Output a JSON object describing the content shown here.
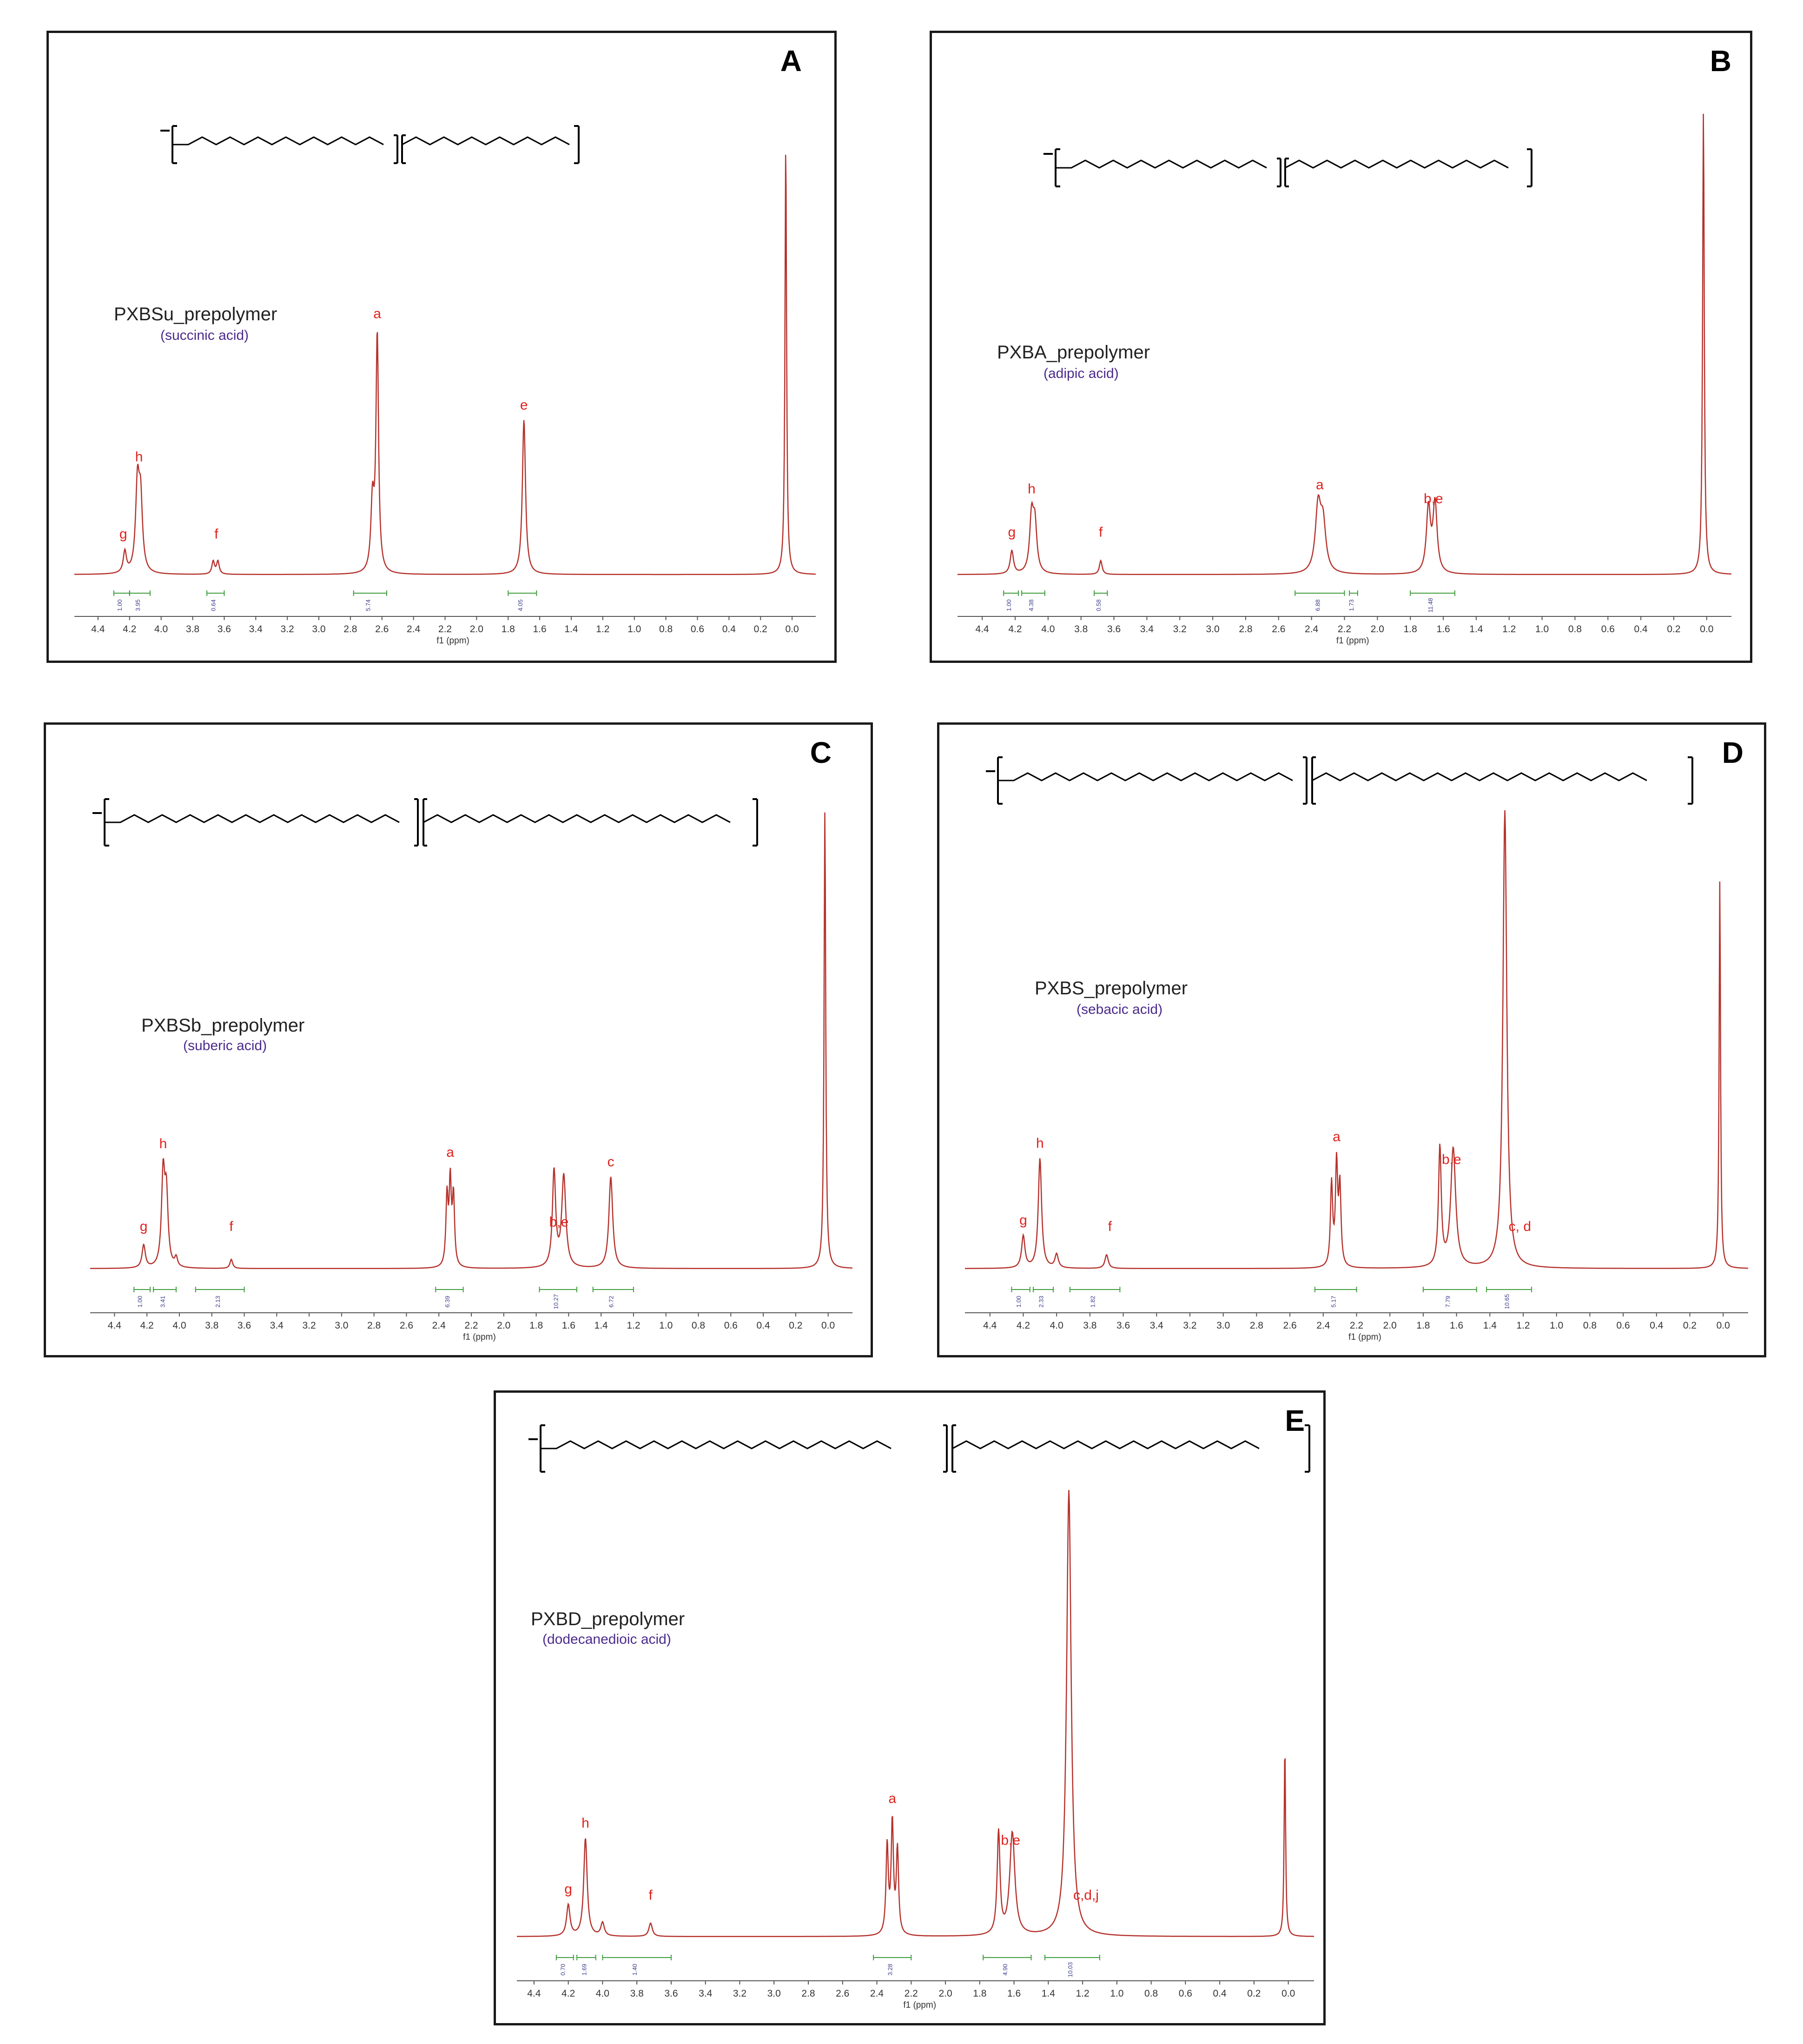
{
  "axis_label": "f1 (ppm)",
  "chart_data": [
    {
      "type": "line",
      "panel": "A",
      "name": "PXBSu_prepolymer",
      "acid": "(succinic acid)",
      "xlim": [
        4.55,
        -0.15
      ],
      "x_reversed": true,
      "ticks": [
        4.4,
        4.2,
        4.0,
        3.8,
        3.6,
        3.4,
        3.2,
        3.0,
        2.8,
        2.6,
        2.4,
        2.2,
        2.0,
        1.8,
        1.6,
        1.4,
        1.2,
        1.0,
        0.8,
        0.6,
        0.4,
        0.2,
        0.0
      ],
      "peaks": [
        {
          "ppm": 4.23,
          "height": 0.05,
          "width": 0.012
        },
        {
          "ppm": 4.15,
          "height": 0.2,
          "width": 0.014
        },
        {
          "ppm": 4.13,
          "height": 0.16,
          "width": 0.014
        },
        {
          "ppm": 3.67,
          "height": 0.03,
          "width": 0.01
        },
        {
          "ppm": 3.64,
          "height": 0.03,
          "width": 0.01
        },
        {
          "ppm": 2.66,
          "height": 0.16,
          "width": 0.012
        },
        {
          "ppm": 2.63,
          "height": 0.55,
          "width": 0.01
        },
        {
          "ppm": 1.7,
          "height": 0.36,
          "width": 0.012
        },
        {
          "ppm": 0.04,
          "height": 1.0,
          "width": 0.006
        }
      ],
      "peak_labels": [
        {
          "ppm": 4.24,
          "label": "g"
        },
        {
          "ppm": 4.14,
          "label": "h"
        },
        {
          "ppm": 3.65,
          "label": "f"
        },
        {
          "ppm": 2.63,
          "label": "a"
        },
        {
          "ppm": 1.7,
          "label": "e"
        }
      ],
      "integrals": [
        {
          "from": 4.3,
          "to": 4.2,
          "value": "1.00"
        },
        {
          "from": 4.2,
          "to": 4.07,
          "value": "3.95"
        },
        {
          "from": 3.71,
          "to": 3.6,
          "value": "0.64"
        },
        {
          "from": 2.78,
          "to": 2.57,
          "value": "5.74"
        },
        {
          "from": 1.8,
          "to": 1.62,
          "value": "4.05"
        }
      ]
    },
    {
      "type": "line",
      "panel": "B",
      "name": "PXBA_prepolymer",
      "acid": "(adipic acid)",
      "xlim": [
        4.55,
        -0.15
      ],
      "x_reversed": true,
      "ticks": [
        4.4,
        4.2,
        4.0,
        3.8,
        3.6,
        3.4,
        3.2,
        3.0,
        2.8,
        2.6,
        2.4,
        2.2,
        2.0,
        1.8,
        1.6,
        1.4,
        1.2,
        1.0,
        0.8,
        0.6,
        0.4,
        0.2,
        0.0
      ],
      "peaks": [
        {
          "ppm": 4.22,
          "height": 0.05,
          "width": 0.012
        },
        {
          "ppm": 4.1,
          "height": 0.12,
          "width": 0.014
        },
        {
          "ppm": 4.08,
          "height": 0.1,
          "width": 0.014
        },
        {
          "ppm": 3.68,
          "height": 0.03,
          "width": 0.01
        },
        {
          "ppm": 2.36,
          "height": 0.14,
          "width": 0.02
        },
        {
          "ppm": 2.33,
          "height": 0.1,
          "width": 0.02
        },
        {
          "ppm": 1.69,
          "height": 0.14,
          "width": 0.015
        },
        {
          "ppm": 1.65,
          "height": 0.15,
          "width": 0.015
        },
        {
          "ppm": 0.02,
          "height": 1.0,
          "width": 0.006
        }
      ],
      "peak_labels": [
        {
          "ppm": 4.22,
          "label": "g"
        },
        {
          "ppm": 4.1,
          "label": "h"
        },
        {
          "ppm": 3.68,
          "label": "f"
        },
        {
          "ppm": 2.35,
          "label": "a"
        },
        {
          "ppm": 1.66,
          "label": "b,e"
        }
      ],
      "integrals": [
        {
          "from": 4.27,
          "to": 4.18,
          "value": "1.00"
        },
        {
          "from": 4.16,
          "to": 4.02,
          "value": "4.38"
        },
        {
          "from": 3.72,
          "to": 3.64,
          "value": "0.58"
        },
        {
          "from": 2.5,
          "to": 2.2,
          "value": "6.88"
        },
        {
          "from": 2.17,
          "to": 2.12,
          "value": "1.73"
        },
        {
          "from": 1.8,
          "to": 1.53,
          "value": "11.48"
        }
      ]
    },
    {
      "type": "line",
      "panel": "C",
      "name": "PXBSb_prepolymer",
      "acid": "(suberic acid)",
      "xlim": [
        4.55,
        -0.15
      ],
      "x_reversed": true,
      "ticks": [
        4.4,
        4.2,
        4.0,
        3.8,
        3.6,
        3.4,
        3.2,
        3.0,
        2.8,
        2.6,
        2.4,
        2.2,
        2.0,
        1.8,
        1.6,
        1.4,
        1.2,
        1.0,
        0.8,
        0.6,
        0.4,
        0.2,
        0.0
      ],
      "peaks": [
        {
          "ppm": 4.22,
          "height": 0.05,
          "width": 0.012
        },
        {
          "ppm": 4.1,
          "height": 0.2,
          "width": 0.012
        },
        {
          "ppm": 4.08,
          "height": 0.15,
          "width": 0.012
        },
        {
          "ppm": 4.02,
          "height": 0.02,
          "width": 0.01
        },
        {
          "ppm": 3.68,
          "height": 0.02,
          "width": 0.01
        },
        {
          "ppm": 2.35,
          "height": 0.15,
          "width": 0.008
        },
        {
          "ppm": 2.33,
          "height": 0.18,
          "width": 0.008
        },
        {
          "ppm": 2.31,
          "height": 0.15,
          "width": 0.008
        },
        {
          "ppm": 1.69,
          "height": 0.21,
          "width": 0.012
        },
        {
          "ppm": 1.63,
          "height": 0.2,
          "width": 0.015
        },
        {
          "ppm": 1.34,
          "height": 0.2,
          "width": 0.014
        },
        {
          "ppm": 0.02,
          "height": 1.0,
          "width": 0.006
        }
      ],
      "peak_labels": [
        {
          "ppm": 4.22,
          "label": "g"
        },
        {
          "ppm": 4.1,
          "label": "h"
        },
        {
          "ppm": 3.68,
          "label": "f"
        },
        {
          "ppm": 2.33,
          "label": "a"
        },
        {
          "ppm": 1.66,
          "label": "b,e"
        },
        {
          "ppm": 1.34,
          "label": "c"
        }
      ],
      "integrals": [
        {
          "from": 4.28,
          "to": 4.18,
          "value": "1.00"
        },
        {
          "from": 4.16,
          "to": 4.02,
          "value": "3.41"
        },
        {
          "from": 3.9,
          "to": 3.6,
          "value": "2.13"
        },
        {
          "from": 2.42,
          "to": 2.25,
          "value": "6.39"
        },
        {
          "from": 1.78,
          "to": 1.55,
          "value": "10.27"
        },
        {
          "from": 1.45,
          "to": 1.2,
          "value": "6.72"
        }
      ]
    },
    {
      "type": "line",
      "panel": "D",
      "name": "PXBS_prepolymer",
      "acid": "(sebacic acid)",
      "xlim": [
        4.55,
        -0.15
      ],
      "x_reversed": true,
      "ticks": [
        4.4,
        4.2,
        4.0,
        3.8,
        3.6,
        3.4,
        3.2,
        3.0,
        2.8,
        2.6,
        2.4,
        2.2,
        2.0,
        1.8,
        1.6,
        1.4,
        1.2,
        1.0,
        0.8,
        0.6,
        0.4,
        0.2,
        0.0
      ],
      "peaks": [
        {
          "ppm": 4.2,
          "height": 0.07,
          "width": 0.012
        },
        {
          "ppm": 4.1,
          "height": 0.24,
          "width": 0.012
        },
        {
          "ppm": 4.0,
          "height": 0.03,
          "width": 0.012
        },
        {
          "ppm": 3.7,
          "height": 0.03,
          "width": 0.012
        },
        {
          "ppm": 2.35,
          "height": 0.18,
          "width": 0.008
        },
        {
          "ppm": 2.32,
          "height": 0.22,
          "width": 0.008
        },
        {
          "ppm": 2.3,
          "height": 0.17,
          "width": 0.008
        },
        {
          "ppm": 1.7,
          "height": 0.26,
          "width": 0.01
        },
        {
          "ppm": 1.62,
          "height": 0.26,
          "width": 0.018
        },
        {
          "ppm": 1.31,
          "height": 1.0,
          "width": 0.014
        },
        {
          "ppm": 0.02,
          "height": 0.85,
          "width": 0.005
        }
      ],
      "peak_labels": [
        {
          "ppm": 4.2,
          "label": "g"
        },
        {
          "ppm": 4.1,
          "label": "h"
        },
        {
          "ppm": 3.68,
          "label": "f"
        },
        {
          "ppm": 2.32,
          "label": "a"
        },
        {
          "ppm": 1.63,
          "label": "b,e"
        },
        {
          "ppm": 1.22,
          "label": "c, d"
        }
      ],
      "integrals": [
        {
          "from": 4.27,
          "to": 4.16,
          "value": "1.00"
        },
        {
          "from": 4.14,
          "to": 4.02,
          "value": "2.33"
        },
        {
          "from": 3.92,
          "to": 3.62,
          "value": "1.82"
        },
        {
          "from": 2.45,
          "to": 2.2,
          "value": "5.17"
        },
        {
          "from": 1.8,
          "to": 1.48,
          "value": "7.79"
        },
        {
          "from": 1.42,
          "to": 1.15,
          "value": "10.65"
        }
      ]
    },
    {
      "type": "line",
      "panel": "E",
      "name": "PXBD_prepolymer",
      "acid": "(dodecanedioic acid)",
      "xlim": [
        4.5,
        -0.15
      ],
      "x_reversed": true,
      "ticks": [
        4.4,
        4.2,
        4.0,
        3.8,
        3.6,
        3.4,
        3.2,
        3.0,
        2.8,
        2.6,
        2.4,
        2.2,
        2.0,
        1.8,
        1.6,
        1.4,
        1.2,
        1.0,
        0.8,
        0.6,
        0.4,
        0.2,
        0.0
      ],
      "peaks": [
        {
          "ppm": 4.2,
          "height": 0.07,
          "width": 0.012
        },
        {
          "ppm": 4.1,
          "height": 0.22,
          "width": 0.012
        },
        {
          "ppm": 4.0,
          "height": 0.03,
          "width": 0.012
        },
        {
          "ppm": 3.72,
          "height": 0.03,
          "width": 0.012
        },
        {
          "ppm": 2.34,
          "height": 0.2,
          "width": 0.008
        },
        {
          "ppm": 2.31,
          "height": 0.25,
          "width": 0.008
        },
        {
          "ppm": 2.28,
          "height": 0.19,
          "width": 0.008
        },
        {
          "ppm": 1.69,
          "height": 0.23,
          "width": 0.01
        },
        {
          "ppm": 1.61,
          "height": 0.23,
          "width": 0.018
        },
        {
          "ppm": 1.28,
          "height": 1.0,
          "width": 0.016
        },
        {
          "ppm": 0.02,
          "height": 0.43,
          "width": 0.005
        }
      ],
      "peak_labels": [
        {
          "ppm": 4.2,
          "label": "g"
        },
        {
          "ppm": 4.1,
          "label": "h"
        },
        {
          "ppm": 3.72,
          "label": "f"
        },
        {
          "ppm": 2.31,
          "label": "a"
        },
        {
          "ppm": 1.62,
          "label": "b,e"
        },
        {
          "ppm": 1.18,
          "label": "c,d,j"
        }
      ],
      "integrals": [
        {
          "from": 4.27,
          "to": 4.17,
          "value": "0.70"
        },
        {
          "from": 4.15,
          "to": 4.04,
          "value": "1.69"
        },
        {
          "from": 4.0,
          "to": 3.6,
          "value": "1.40"
        },
        {
          "from": 2.42,
          "to": 2.2,
          "value": "3.28"
        },
        {
          "from": 1.78,
          "to": 1.5,
          "value": "4.90"
        },
        {
          "from": 1.42,
          "to": 1.1,
          "value": "10.03"
        }
      ]
    }
  ]
}
